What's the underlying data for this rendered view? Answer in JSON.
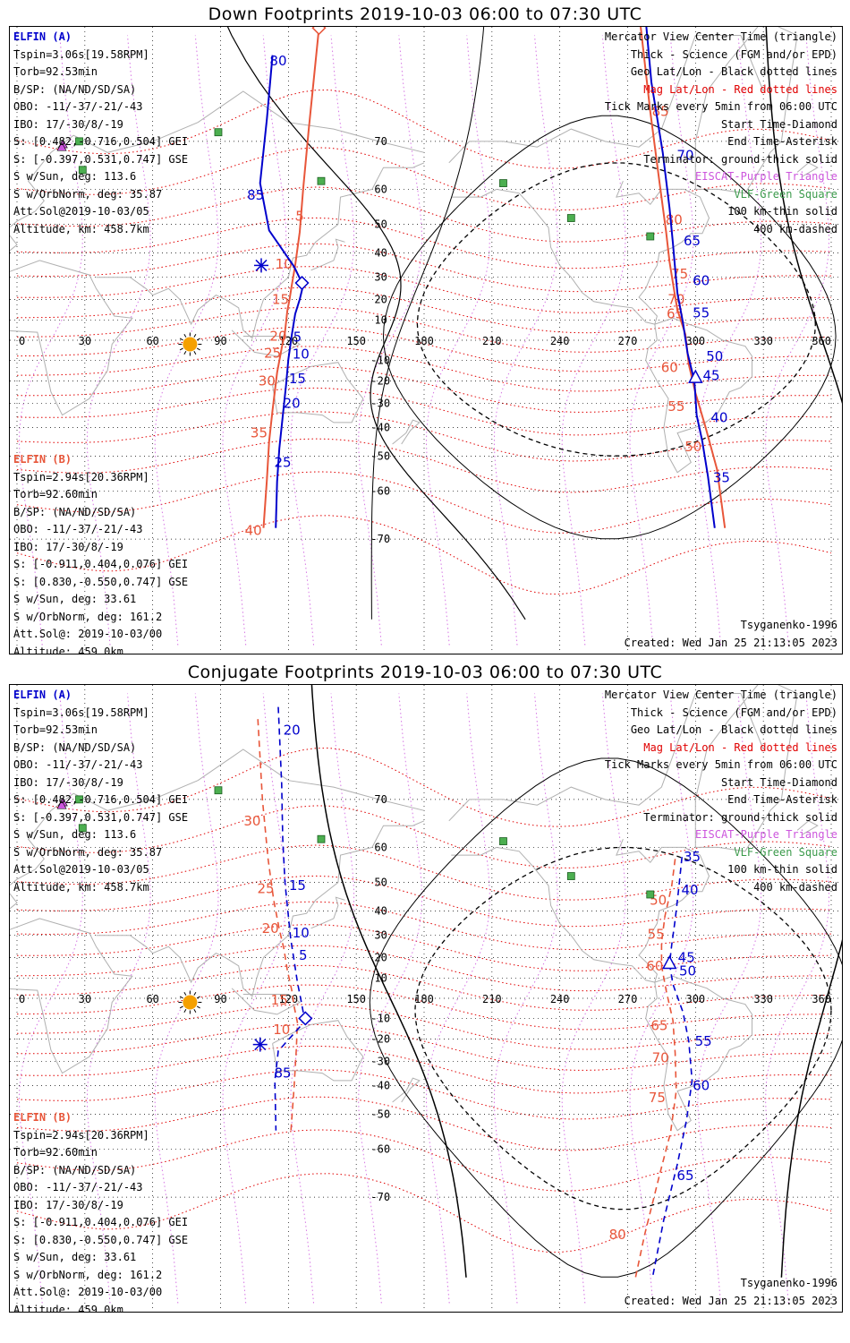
{
  "colors": {
    "elfin_a": "#0000cc",
    "elfin_b": "#e8563a",
    "geo_grid": "#000000",
    "mag_grid": "#e00000",
    "lshell": "#cc55dd",
    "vlf": "#3a9a4a",
    "coast": "#b0b0b0",
    "sun": "#f5a000"
  },
  "panels": [
    {
      "title": "Down Footprints 2019-10-03 06:00 to 07:30 UTC",
      "elfin_a": {
        "header": "ELFIN (A)",
        "lines": [
          "Tspin=3.06s[19.58RPM]",
          "Torb=92.53min",
          "B/SP: (NA/ND/SD/SA)",
          "OBO: -11/-37/-21/-43",
          "IBO: 17/-30/8/-19",
          "S: [0.482,-0.716,0.504] GEI",
          "S: [-0.397,0.531,0.747] GSE",
          "S w/Sun, deg: 113.6",
          "S w/OrbNorm, deg: 35.87",
          "Att.Sol@2019-10-03/05",
          "Altitude, km: 458.7km"
        ]
      },
      "elfin_b": {
        "header": "ELFIN (B)",
        "lines": [
          "Tspin=2.94s[20.36RPM]",
          "Torb=92.60min",
          "B/SP: (NA/ND/SD/SA)",
          "OBO: -11/-37/-21/-43",
          "IBO: 17/-30/8/-19",
          "S: [-0.911,0.404,0.076] GEI",
          "S: [0.830,-0.550,0.747] GSE",
          "S w/Sun, deg: 33.61",
          "S w/OrbNorm, deg: 161.2",
          "Att.Sol@: 2019-10-03/00",
          "Altitude: 459.0km"
        ]
      },
      "legend": [
        "Mercator View Center Time (triangle)",
        "Thick - Science (FGM and/or EPD)",
        "Geo Lat/Lon - Black dotted lines",
        "Mag Lat/Lon - Red dotted lines",
        "Tick Marks every 5min from 06:00 UTC",
        "Start Time-Diamond",
        "End Time-Asterisk",
        "Terminator: ground-thick solid",
        "EISCAT-Purple Triangle",
        "VLF-Green Square",
        "100 km-thin solid",
        "400 km-dashed"
      ],
      "footer": [
        "Tsyganenko-1996",
        "Created: Wed Jan 25 21:13:05 2023"
      ],
      "track_a": {
        "points": [
          [
            114.4,
            -68.0
          ],
          [
            115.0,
            -57.5
          ],
          [
            116.0,
            -47.5
          ],
          [
            117.5,
            -35.5
          ],
          [
            119.0,
            -21.5
          ],
          [
            120.0,
            -9.5
          ],
          [
            121.5,
            2.5
          ],
          [
            123.0,
            13.0
          ],
          [
            125.0,
            20.0
          ],
          [
            126.5,
            26.5
          ],
          [
            122.5,
            34.5
          ],
          [
            111.5,
            48.0
          ],
          [
            107.5,
            61.5
          ],
          [
            110.5,
            73.5
          ],
          [
            113.0,
            80.5
          ]
        ],
        "labels": [
          [
            2,
            "5",
            124.0,
            1.5
          ],
          [
            4,
            "10",
            125.5,
            -7.0
          ],
          [
            6,
            "15",
            124.0,
            -19.0
          ],
          [
            8,
            "20",
            121.5,
            -30.0
          ],
          [
            10,
            "25",
            117.5,
            -52.0
          ],
          [
            13,
            "85",
            105.5,
            58.5
          ],
          [
            14,
            "80",
            115.5,
            80.0
          ]
        ],
        "start": [
          126.0,
          27.5
        ],
        "end": [
          108.0,
          35.0
        ],
        "style": "solid"
      },
      "track_b": {
        "points": [
          [
            109.0,
            -68.0
          ],
          [
            110.5,
            -57.0
          ],
          [
            111.5,
            -45.0
          ],
          [
            113.0,
            -33.0
          ],
          [
            115.0,
            -16.0
          ],
          [
            117.0,
            -4.0
          ],
          [
            118.5,
            4.0
          ],
          [
            119.5,
            14.5
          ],
          [
            120.5,
            20.0
          ],
          [
            121.5,
            26.5
          ],
          [
            123.0,
            35.0
          ],
          [
            125.0,
            47.5
          ],
          [
            126.5,
            60.0
          ],
          [
            129.0,
            72.0
          ],
          [
            133.5,
            82.5
          ]
        ],
        "labels": [
          [
            1,
            "40",
            104.5,
            -68.5
          ],
          [
            3,
            "35",
            107.0,
            -42.0
          ],
          [
            5,
            "30",
            110.5,
            -20.0
          ],
          [
            6,
            "25",
            113.0,
            -6.5
          ],
          [
            7,
            "20",
            115.5,
            2.0
          ],
          [
            9,
            "15",
            116.5,
            20.0
          ],
          [
            11,
            "10",
            118.0,
            35.5
          ],
          [
            12,
            "5",
            125.0,
            52.5
          ]
        ],
        "start": [
          133.5,
          82.5
        ],
        "end": null,
        "style": "solid"
      },
      "track_a2": {
        "points": [
          [
            308.5,
            -68.0
          ],
          [
            305.5,
            -56.0
          ],
          [
            303.0,
            -45.0
          ],
          [
            300.5,
            -35.0
          ],
          [
            299.5,
            -20.0
          ],
          [
            296.5,
            -6.5
          ],
          [
            294.5,
            8.5
          ],
          [
            292.0,
            23.0
          ],
          [
            291.0,
            33.5
          ],
          [
            290.0,
            43.5
          ],
          [
            288.5,
            55.0
          ],
          [
            285.5,
            68.0
          ],
          [
            280.5,
            78.0
          ],
          [
            278.0,
            83.0
          ]
        ],
        "labels": [
          [
            1,
            "35",
            311.5,
            -56.5
          ],
          [
            2,
            "40",
            310.5,
            -36.0
          ],
          [
            3,
            "45",
            307.0,
            -17.5
          ],
          [
            4,
            "50",
            308.5,
            -8.0
          ],
          [
            6,
            "55",
            302.5,
            13.5
          ],
          [
            7,
            "60",
            302.5,
            28.5
          ],
          [
            8,
            "65",
            298.5,
            44.5
          ],
          [
            10,
            "70",
            295.5,
            67.5
          ]
        ],
        "center": [
          300.0,
          -18.5
        ],
        "style": "solid"
      },
      "track_b2": {
        "points": [
          [
            313.0,
            -68.0
          ],
          [
            309.5,
            -54.0
          ],
          [
            304.5,
            -40.0
          ],
          [
            300.0,
            -25.5
          ],
          [
            297.0,
            -12.0
          ],
          [
            295.5,
            3.0
          ],
          [
            292.0,
            15.0
          ],
          [
            290.5,
            24.5
          ],
          [
            288.5,
            36.5
          ],
          [
            287.0,
            47.5
          ],
          [
            284.0,
            62.0
          ],
          [
            280.0,
            74.5
          ],
          [
            275.0,
            83.5
          ]
        ],
        "labels": [
          [
            1,
            "50",
            299.0,
            -47.0
          ],
          [
            2,
            "55",
            291.5,
            -31.5
          ],
          [
            4,
            "60",
            288.5,
            -13.5
          ],
          [
            6,
            "65",
            291.0,
            13.0
          ],
          [
            7,
            "70",
            291.5,
            20.0
          ],
          [
            8,
            "75",
            293.0,
            31.5
          ],
          [
            10,
            "80",
            290.5,
            51.5
          ],
          [
            12,
            "85",
            284.5,
            74.5
          ]
        ],
        "style": "solid"
      }
    },
    {
      "title": "Conjugate Footprints 2019-10-03 06:00 to 07:30 UTC",
      "elfin_a": {
        "header": "ELFIN (A)",
        "lines": [
          "Tspin=3.06s[19.58RPM]",
          "Torb=92.53min",
          "B/SP: (NA/ND/SD/SA)",
          "OBO: -11/-37/-21/-43",
          "IBO: 17/-30/8/-19",
          "S: [0.482,-0.716,0.504] GEI",
          "S: [-0.397,0.531,0.747] GSE",
          "S w/Sun, deg: 113.6",
          "S w/OrbNorm, deg: 35.87",
          "Att.Sol@2019-10-03/05",
          "Altitude, km: 458.7km"
        ]
      },
      "elfin_b": {
        "header": "ELFIN (B)",
        "lines": [
          "Tspin=2.94s[20.36RPM]",
          "Torb=92.60min",
          "B/SP: (NA/ND/SD/SA)",
          "OBO: -11/-37/-21/-43",
          "IBO: 17/-30/8/-19",
          "S: [-0.911,0.404,0.076] GEI",
          "S: [0.830,-0.550,0.747] GSE",
          "S w/Sun, deg: 33.61",
          "S w/OrbNorm, deg: 161.2",
          "Att.Sol@: 2019-10-03/00",
          "Altitude: 459.0km"
        ]
      },
      "legend": [
        "Mercator View Center Time (triangle)",
        "Thick - Science (FGM and/or EPD)",
        "Geo Lat/Lon - Black dotted lines",
        "Mag Lat/Lon - Red dotted lines",
        "Tick Marks every 5min from 06:00 UTC",
        "Start Time-Diamond",
        "End Time-Asterisk",
        "Terminator: ground-thick solid",
        "EISCAT-Purple Triangle",
        "VLF-Green Square",
        "100 km-thin solid",
        "400 km-dashed"
      ],
      "footer": [
        "Tsyganenko-1996",
        "Created: Wed Jan 25 21:13:05 2023"
      ],
      "track_a": {
        "points": [
          [
            115.5,
            81.0
          ],
          [
            117.0,
            72.5
          ],
          [
            117.5,
            62.0
          ],
          [
            118.5,
            50.0
          ],
          [
            120.0,
            38.0
          ],
          [
            121.0,
            28.5
          ],
          [
            122.5,
            18.5
          ],
          [
            124.0,
            8.0
          ],
          [
            125.5,
            -0.5
          ],
          [
            127.0,
            -9.5
          ],
          [
            126.0,
            -13.0
          ],
          [
            115.5,
            -25.5
          ],
          [
            114.0,
            -38.0
          ],
          [
            114.5,
            -55.0
          ]
        ],
        "labels": [
          [
            0,
            "20",
            121.5,
            79.0
          ],
          [
            3,
            "15",
            124.0,
            49.0
          ],
          [
            5,
            "10",
            125.5,
            31.0
          ],
          [
            6,
            "5",
            126.5,
            21.0
          ],
          [
            11,
            "85",
            117.5,
            -35.0
          ]
        ],
        "start": [
          127.5,
          -10.0
        ],
        "end": [
          107.5,
          -22.5
        ],
        "style": "dashed"
      },
      "track_b": {
        "points": [
          [
            106.5,
            80.0
          ],
          [
            108.5,
            70.0
          ],
          [
            111.0,
            57.0
          ],
          [
            113.5,
            44.0
          ],
          [
            116.0,
            32.5
          ],
          [
            118.0,
            24.0
          ],
          [
            119.5,
            14.0
          ],
          [
            121.5,
            4.0
          ],
          [
            122.5,
            -4.0
          ],
          [
            124.0,
            -12.0
          ],
          [
            123.5,
            -24.5
          ],
          [
            122.5,
            -40.5
          ],
          [
            121.0,
            -56.0
          ]
        ],
        "labels": [
          [
            0,
            "35",
            99.5,
            85.0
          ],
          [
            2,
            "30",
            104.0,
            66.0
          ],
          [
            4,
            "25",
            110.0,
            48.0
          ],
          [
            5,
            "20",
            112.0,
            33.0
          ],
          [
            7,
            "15",
            116.0,
            -1.0
          ],
          [
            8,
            "10",
            117.0,
            -15.5
          ]
        ],
        "style": "dashed"
      },
      "track_a2": {
        "points": [
          [
            294.0,
            57.5
          ],
          [
            292.5,
            47.5
          ],
          [
            291.0,
            36.5
          ],
          [
            289.5,
            26.0
          ],
          [
            288.5,
            17.0
          ],
          [
            290.0,
            7.0
          ],
          [
            294.5,
            -7.0
          ],
          [
            297.0,
            -21.0
          ],
          [
            298.5,
            -38.0
          ],
          [
            296.0,
            -52.0
          ],
          [
            292.0,
            -63.5
          ],
          [
            286.0,
            -73.5
          ],
          [
            281.0,
            -80.0
          ]
        ],
        "labels": [
          [
            0,
            "35",
            298.5,
            57.5
          ],
          [
            1,
            "40",
            297.5,
            47.5
          ],
          [
            4,
            "45",
            296.0,
            20.0
          ],
          [
            5,
            "50",
            296.5,
            13.5
          ],
          [
            7,
            "55",
            303.5,
            -21.0
          ],
          [
            9,
            "60",
            302.5,
            -40.0
          ],
          [
            11,
            "65",
            295.5,
            -66.0
          ]
        ],
        "center": [
          288.5,
          17.0
        ],
        "style": "dashed"
      },
      "track_b2": {
        "points": [
          [
            291.0,
            57.0
          ],
          [
            289.5,
            49.0
          ],
          [
            286.5,
            38.0
          ],
          [
            285.0,
            27.0
          ],
          [
            285.0,
            16.0
          ],
          [
            287.0,
            4.0
          ],
          [
            290.0,
            -11.0
          ],
          [
            291.0,
            -26.5
          ],
          [
            291.5,
            -42.0
          ],
          [
            289.0,
            -55.5
          ],
          [
            284.0,
            -66.0
          ],
          [
            277.5,
            -75.5
          ],
          [
            273.5,
            -80.0
          ]
        ],
        "labels": [
          [
            1,
            "50",
            283.5,
            44.0
          ],
          [
            3,
            "55",
            282.5,
            30.5
          ],
          [
            4,
            "60",
            282.0,
            16.0
          ],
          [
            6,
            "65",
            284.0,
            -13.5
          ],
          [
            7,
            "70",
            284.5,
            -28.5
          ],
          [
            8,
            "75",
            283.0,
            -44.5
          ],
          [
            12,
            "80",
            265.5,
            -75.5
          ]
        ],
        "style": "dashed"
      }
    }
  ],
  "axis": {
    "lon_ticks": [
      "0",
      "30",
      "60",
      "90",
      "120",
      "150",
      "180",
      "210",
      "240",
      "270",
      "300",
      "330",
      "360"
    ],
    "lat_ticks": [
      [
        "70",
        70
      ],
      [
        "60",
        60
      ],
      [
        "50",
        50
      ],
      [
        "40",
        40
      ],
      [
        "30",
        30
      ],
      [
        "20",
        20
      ],
      [
        "10",
        10
      ],
      [
        "-10",
        -10
      ],
      [
        "-20",
        -20
      ],
      [
        "-30",
        -30
      ],
      [
        "-40",
        -40
      ],
      [
        "-50",
        -50
      ],
      [
        "-60",
        -60
      ],
      [
        "-70",
        -70
      ]
    ]
  },
  "markers": {
    "sun": [
      76.5,
      -2.0
    ],
    "vlf": [
      [
        89.0,
        71.5
      ],
      [
        27.5,
        70.0
      ],
      [
        29.0,
        64.5
      ],
      [
        134.5,
        62.0
      ],
      [
        215.0,
        61.5
      ],
      [
        245.0,
        52.0
      ],
      [
        280.0,
        46.0
      ]
    ],
    "eiscat": [
      [
        19.5,
        69.5
      ],
      [
        19.0,
        69.0
      ]
    ]
  }
}
